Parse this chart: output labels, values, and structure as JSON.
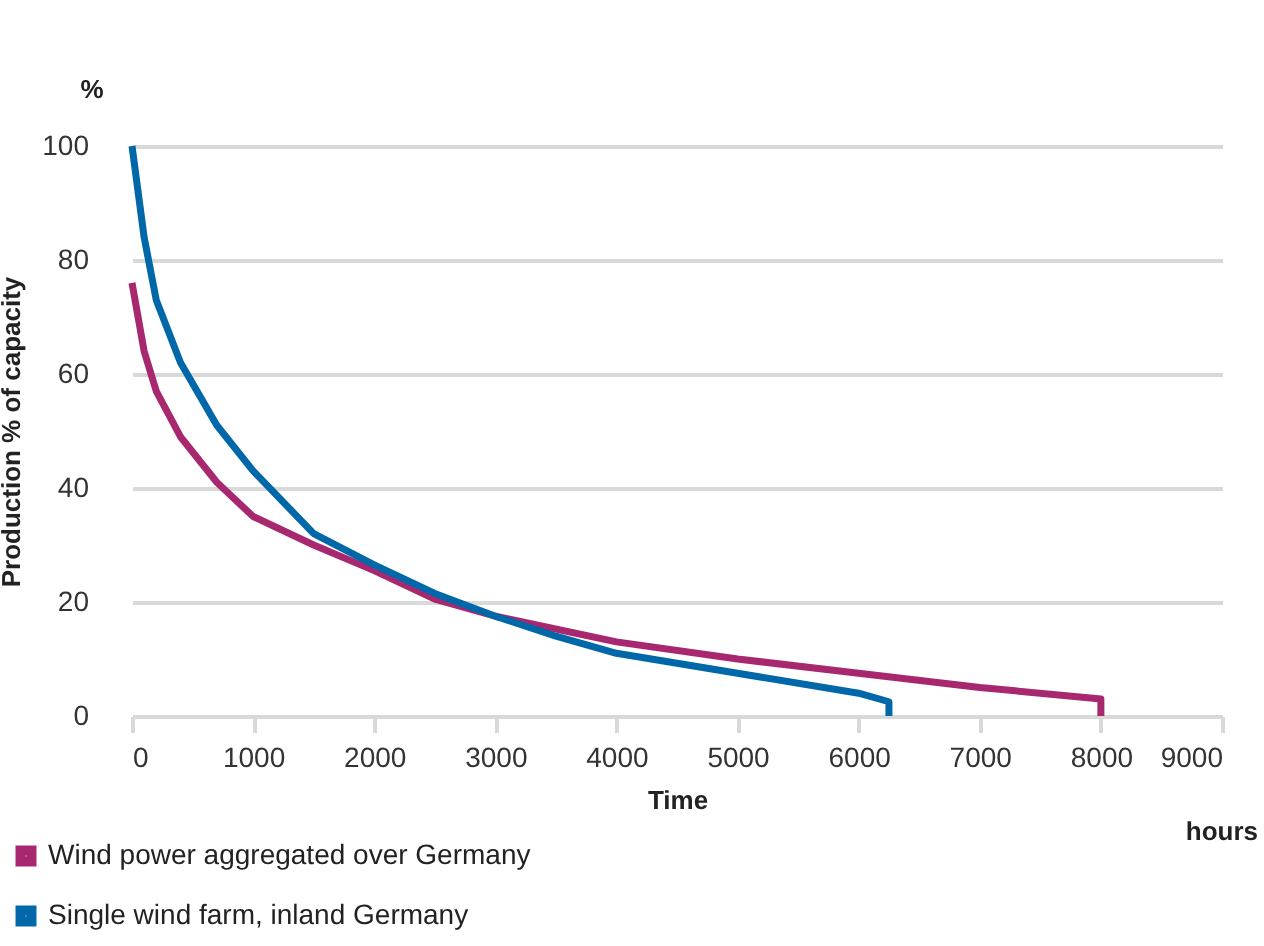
{
  "chart_data": {
    "type": "line",
    "xlabel": "Time",
    "ylabel": "Production % of capacity",
    "annotations": [
      "%",
      "hours"
    ],
    "xlim": [
      0,
      9000
    ],
    "xticks": [
      0,
      1000,
      2000,
      3000,
      4000,
      5000,
      6000,
      7000,
      8000,
      9000
    ],
    "ylim": [
      0,
      100
    ],
    "yticks": [
      0,
      20,
      40,
      60,
      80,
      100
    ],
    "grid": "y",
    "legend": "bottom",
    "line_style": "solid",
    "series": [
      {
        "name": "Wind power aggregated over Germany",
        "color": "#a8286f",
        "x": [
          0,
          100,
          200,
          400,
          700,
          1000,
          1500,
          2000,
          2500,
          3000,
          4000,
          5000,
          6000,
          7000,
          8000,
          8000
        ],
        "values": [
          76,
          64,
          57,
          49,
          41,
          35,
          30,
          25.5,
          20.5,
          17.5,
          13,
          10,
          7.5,
          5,
          3,
          0
        ]
      },
      {
        "name": "Single wind farm, inland Germany",
        "color": "#0068a8",
        "x": [
          0,
          100,
          200,
          400,
          700,
          1000,
          1500,
          2000,
          2500,
          3000,
          3500,
          4000,
          5000,
          6000,
          6250,
          6250
        ],
        "values": [
          100,
          84,
          73,
          62,
          51,
          43,
          32,
          26.5,
          21.5,
          17.5,
          14,
          11,
          7.5,
          4,
          2.5,
          0
        ]
      }
    ]
  }
}
